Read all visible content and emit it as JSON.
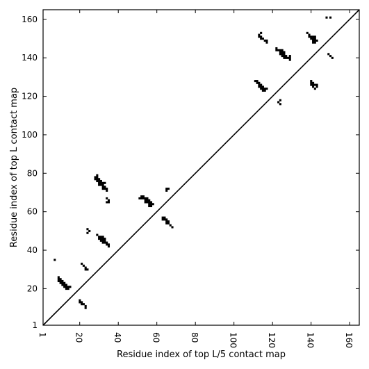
{
  "chart_data": {
    "type": "heatmap",
    "xlabel": "Residue index of top L/5 contact map",
    "ylabel": "Residue index of top L contact map",
    "xlim": [
      1,
      165
    ],
    "ylim": [
      1,
      165
    ],
    "x_ticks": [
      {
        "value": 1,
        "label": "1"
      },
      {
        "value": 20,
        "label": "20"
      },
      {
        "value": 40,
        "label": "40"
      },
      {
        "value": 60,
        "label": "60"
      },
      {
        "value": 80,
        "label": "80"
      },
      {
        "value": 100,
        "label": "100"
      },
      {
        "value": 120,
        "label": "120"
      },
      {
        "value": 140,
        "label": "140"
      },
      {
        "value": 160,
        "label": "160"
      }
    ],
    "y_ticks": [
      {
        "value": 1,
        "label": "1"
      },
      {
        "value": 20,
        "label": "20"
      },
      {
        "value": 40,
        "label": "40"
      },
      {
        "value": 60,
        "label": "60"
      },
      {
        "value": 80,
        "label": "80"
      },
      {
        "value": 100,
        "label": "100"
      },
      {
        "value": 120,
        "label": "120"
      },
      {
        "value": 140,
        "label": "140"
      },
      {
        "value": 160,
        "label": "160"
      }
    ],
    "x_tick_rotation": -90,
    "diagonal_line": true,
    "grid": false,
    "contact_color": "#000000",
    "background_color": "#ffffff",
    "contacts": [
      [
        7,
        35
      ],
      [
        9,
        24
      ],
      [
        9,
        25
      ],
      [
        9,
        26
      ],
      [
        10,
        23
      ],
      [
        10,
        24
      ],
      [
        10,
        25
      ],
      [
        11,
        22
      ],
      [
        11,
        23
      ],
      [
        11,
        24
      ],
      [
        12,
        21
      ],
      [
        12,
        22
      ],
      [
        12,
        23
      ],
      [
        13,
        20
      ],
      [
        13,
        21
      ],
      [
        13,
        22
      ],
      [
        14,
        20
      ],
      [
        14,
        21
      ],
      [
        15,
        21
      ],
      [
        20,
        13
      ],
      [
        20,
        14
      ],
      [
        21,
        12
      ],
      [
        21,
        13
      ],
      [
        22,
        12
      ],
      [
        23,
        10
      ],
      [
        23,
        11
      ],
      [
        21,
        33
      ],
      [
        22,
        32
      ],
      [
        23,
        30
      ],
      [
        23,
        31
      ],
      [
        24,
        30
      ],
      [
        24,
        49
      ],
      [
        24,
        51
      ],
      [
        25,
        50
      ],
      [
        28,
        77
      ],
      [
        28,
        78
      ],
      [
        29,
        76
      ],
      [
        29,
        77
      ],
      [
        29,
        78
      ],
      [
        29,
        79
      ],
      [
        30,
        74
      ],
      [
        30,
        75
      ],
      [
        30,
        76
      ],
      [
        30,
        77
      ],
      [
        31,
        74
      ],
      [
        31,
        75
      ],
      [
        31,
        76
      ],
      [
        32,
        72
      ],
      [
        32,
        73
      ],
      [
        32,
        74
      ],
      [
        32,
        75
      ],
      [
        33,
        72
      ],
      [
        33,
        73
      ],
      [
        33,
        75
      ],
      [
        34,
        71
      ],
      [
        34,
        72
      ],
      [
        29,
        48
      ],
      [
        30,
        46
      ],
      [
        30,
        47
      ],
      [
        31,
        45
      ],
      [
        31,
        46
      ],
      [
        31,
        47
      ],
      [
        32,
        44
      ],
      [
        32,
        45
      ],
      [
        32,
        46
      ],
      [
        32,
        47
      ],
      [
        33,
        44
      ],
      [
        33,
        45
      ],
      [
        33,
        46
      ],
      [
        34,
        43
      ],
      [
        34,
        44
      ],
      [
        35,
        42
      ],
      [
        35,
        43
      ],
      [
        34,
        65
      ],
      [
        34,
        67
      ],
      [
        35,
        65
      ],
      [
        35,
        66
      ],
      [
        51,
        67
      ],
      [
        52,
        67
      ],
      [
        52,
        68
      ],
      [
        53,
        67
      ],
      [
        53,
        68
      ],
      [
        54,
        65
      ],
      [
        54,
        66
      ],
      [
        54,
        67
      ],
      [
        55,
        65
      ],
      [
        55,
        66
      ],
      [
        55,
        67
      ],
      [
        56,
        63
      ],
      [
        56,
        64
      ],
      [
        56,
        65
      ],
      [
        56,
        66
      ],
      [
        57,
        63
      ],
      [
        57,
        64
      ],
      [
        57,
        65
      ],
      [
        58,
        64
      ],
      [
        63,
        56
      ],
      [
        63,
        57
      ],
      [
        64,
        56
      ],
      [
        64,
        57
      ],
      [
        65,
        54
      ],
      [
        65,
        55
      ],
      [
        65,
        56
      ],
      [
        66,
        54
      ],
      [
        66,
        55
      ],
      [
        67,
        53
      ],
      [
        68,
        52
      ],
      [
        65,
        71
      ],
      [
        65,
        72
      ],
      [
        66,
        72
      ],
      [
        111,
        128
      ],
      [
        112,
        127
      ],
      [
        112,
        128
      ],
      [
        113,
        125
      ],
      [
        113,
        126
      ],
      [
        113,
        127
      ],
      [
        114,
        124
      ],
      [
        114,
        125
      ],
      [
        114,
        126
      ],
      [
        115,
        123
      ],
      [
        115,
        124
      ],
      [
        115,
        125
      ],
      [
        116,
        123
      ],
      [
        116,
        124
      ],
      [
        117,
        124
      ],
      [
        113,
        151
      ],
      [
        113,
        152
      ],
      [
        114,
        150
      ],
      [
        114,
        151
      ],
      [
        114,
        153
      ],
      [
        115,
        150
      ],
      [
        116,
        149
      ],
      [
        117,
        148
      ],
      [
        117,
        149
      ],
      [
        122,
        144
      ],
      [
        122,
        145
      ],
      [
        123,
        144
      ],
      [
        124,
        142
      ],
      [
        124,
        143
      ],
      [
        124,
        144
      ],
      [
        125,
        141
      ],
      [
        125,
        142
      ],
      [
        125,
        143
      ],
      [
        125,
        144
      ],
      [
        126,
        140
      ],
      [
        126,
        141
      ],
      [
        126,
        142
      ],
      [
        126,
        143
      ],
      [
        127,
        140
      ],
      [
        127,
        141
      ],
      [
        128,
        140
      ],
      [
        129,
        139
      ],
      [
        129,
        140
      ],
      [
        129,
        141
      ],
      [
        123,
        117
      ],
      [
        124,
        116
      ],
      [
        124,
        118
      ],
      [
        138,
        153
      ],
      [
        139,
        151
      ],
      [
        139,
        152
      ],
      [
        140,
        150
      ],
      [
        140,
        151
      ],
      [
        141,
        148
      ],
      [
        141,
        149
      ],
      [
        141,
        150
      ],
      [
        141,
        151
      ],
      [
        142,
        148
      ],
      [
        142,
        149
      ],
      [
        142,
        150
      ],
      [
        142,
        151
      ],
      [
        143,
        149
      ],
      [
        140,
        126
      ],
      [
        140,
        127
      ],
      [
        140,
        128
      ],
      [
        141,
        125
      ],
      [
        141,
        126
      ],
      [
        141,
        127
      ],
      [
        142,
        124
      ],
      [
        142,
        126
      ],
      [
        143,
        125
      ],
      [
        143,
        126
      ],
      [
        148,
        161
      ],
      [
        150,
        161
      ],
      [
        149,
        142
      ],
      [
        150,
        141
      ],
      [
        151,
        140
      ]
    ]
  }
}
